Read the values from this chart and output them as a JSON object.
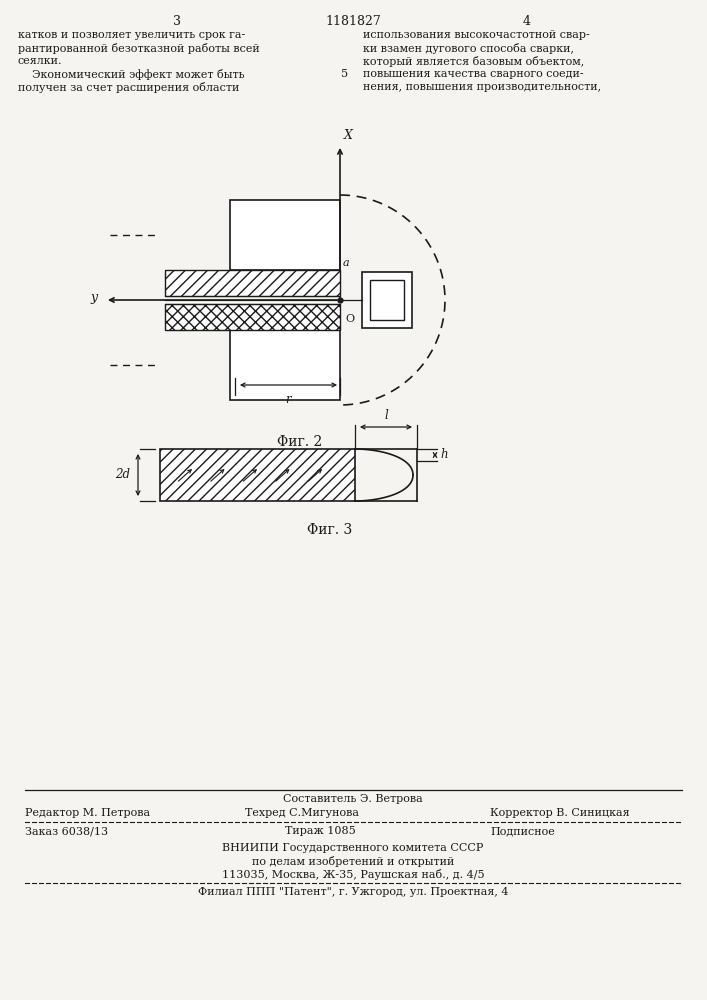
{
  "bg_color": "#f5f4f0",
  "line_color": "#1a1a1a",
  "page_num_left": "3",
  "page_num_center": "1181827",
  "page_num_right": "4",
  "col_left_text": [
    "катков и позволяет увеличить срок га-",
    "рантированной безотказной работы всей",
    "сеялки.",
    "    Экономический эффект может быть",
    "получен за счет расширения области"
  ],
  "col_right_text": [
    "использования высокочастотной свар-",
    "ки взамен дугового способа сварки,",
    "который является базовым объектом,",
    "повышения качества сварного соеди-",
    "нения, повышения производительности,"
  ],
  "line_num_right": "5",
  "fig2_caption": "Φиг. 2",
  "fig3_caption": "Φиг. 3",
  "footer_line1_center": "Составитель Э. Ветрова",
  "footer_line2_left": "Редактор М. Петрова",
  "footer_line2_center": "Техред С.Мигунова",
  "footer_line2_right": "Корректор В. Синицкая",
  "footer_order": "Заказ 6038/13",
  "footer_tirazh": "Тираж 1085",
  "footer_podp": "Подписное",
  "footer_vniip1": "ВНИИПИ Государственного комитета СССР",
  "footer_vniip2": "по делам изобретений и открытий",
  "footer_vniip3": "113035, Москва, Ж-35, Раушская наб., д. 4/5",
  "footer_filial": "Филиал ППП \"Патент\", г. Ужгород, ул. Проектная, 4"
}
